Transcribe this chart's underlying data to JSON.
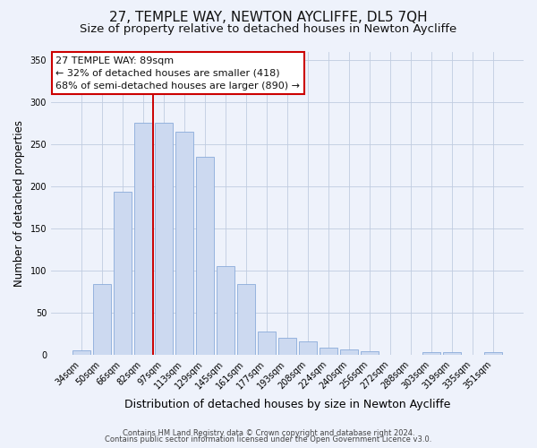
{
  "title": "27, TEMPLE WAY, NEWTON AYCLIFFE, DL5 7QH",
  "subtitle": "Size of property relative to detached houses in Newton Aycliffe",
  "xlabel": "Distribution of detached houses by size in Newton Aycliffe",
  "ylabel": "Number of detached properties",
  "bar_labels": [
    "34sqm",
    "50sqm",
    "66sqm",
    "82sqm",
    "97sqm",
    "113sqm",
    "129sqm",
    "145sqm",
    "161sqm",
    "177sqm",
    "193sqm",
    "208sqm",
    "224sqm",
    "240sqm",
    "256sqm",
    "272sqm",
    "288sqm",
    "303sqm",
    "319sqm",
    "335sqm",
    "351sqm"
  ],
  "bar_values": [
    6,
    84,
    194,
    275,
    275,
    265,
    235,
    106,
    84,
    28,
    20,
    16,
    9,
    7,
    5,
    0,
    0,
    3,
    3,
    0,
    3
  ],
  "bar_color": "#ccd9f0",
  "bar_edge_color": "#8aabda",
  "vline_between": [
    3,
    4
  ],
  "vline_color": "#cc0000",
  "annotation_title": "27 TEMPLE WAY: 89sqm",
  "annotation_line1": "← 32% of detached houses are smaller (418)",
  "annotation_line2": "68% of semi-detached houses are larger (890) →",
  "annotation_box_facecolor": "#ffffff",
  "annotation_box_edgecolor": "#cc0000",
  "ylim": [
    0,
    360
  ],
  "yticks": [
    0,
    50,
    100,
    150,
    200,
    250,
    300,
    350
  ],
  "footer_line1": "Contains HM Land Registry data © Crown copyright and database right 2024.",
  "footer_line2": "Contains public sector information licensed under the Open Government Licence v3.0.",
  "bg_color": "#eef2fb",
  "grid_color": "#c0cce0",
  "title_fontsize": 11,
  "subtitle_fontsize": 9.5,
  "ylabel_fontsize": 8.5,
  "xlabel_fontsize": 9,
  "tick_fontsize": 7,
  "ann_fontsize": 8,
  "footer_fontsize": 6
}
